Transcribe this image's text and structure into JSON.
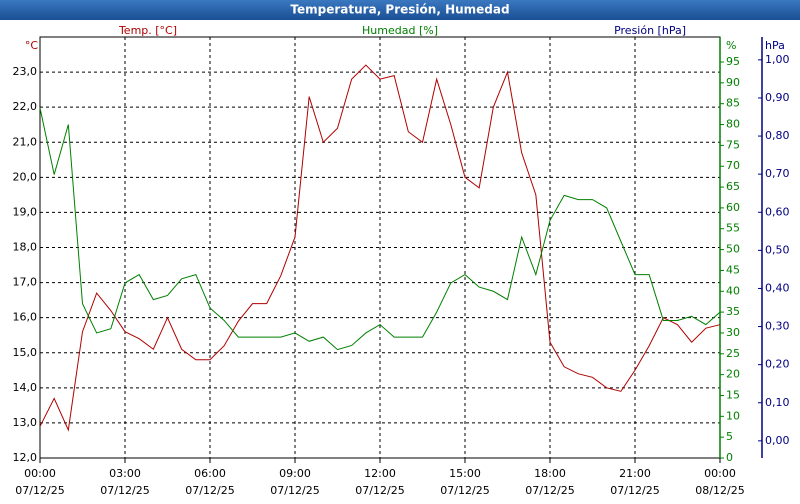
{
  "chart_data": {
    "type": "line",
    "title": "Temperatura, Presión, Humedad",
    "ylabel": "Temp. [°C]",
    "yunit": "°C",
    "y2label": "Humedad [%]",
    "y2unit": "%",
    "y3label": "Presión [hPa]",
    "y3unit": "hPa",
    "x": [
      0,
      0.5,
      1,
      1.5,
      2,
      2.5,
      3,
      3.5,
      4,
      4.5,
      5,
      5.5,
      6,
      6.5,
      7,
      7.5,
      8,
      8.5,
      9,
      9.5,
      10,
      10.5,
      11,
      11.5,
      12,
      12.5,
      13,
      13.5,
      14,
      14.5,
      15,
      15.5,
      16,
      16.5,
      17,
      17.5,
      18,
      18.5,
      19,
      19.5,
      20,
      20.5,
      21,
      21.5,
      22,
      22.5,
      23,
      23.5,
      24
    ],
    "xlim": [
      0,
      24
    ],
    "xticks": [
      {
        "value": 0,
        "label": "00:00",
        "date": "07/12/25"
      },
      {
        "value": 3,
        "label": "03:00",
        "date": "07/12/25"
      },
      {
        "value": 6,
        "label": "06:00",
        "date": "07/12/25"
      },
      {
        "value": 9,
        "label": "09:00",
        "date": "07/12/25"
      },
      {
        "value": 12,
        "label": "12:00",
        "date": "07/12/25"
      },
      {
        "value": 15,
        "label": "15:00",
        "date": "07/12/25"
      },
      {
        "value": 18,
        "label": "18:00",
        "date": "07/12/25"
      },
      {
        "value": 21,
        "label": "21:00",
        "date": "07/12/25"
      },
      {
        "value": 24,
        "label": "00:00",
        "date": "08/12/25"
      }
    ],
    "ylim": [
      12,
      24
    ],
    "yticks": [
      {
        "value": 12,
        "label": "12,0"
      },
      {
        "value": 13,
        "label": "13,0"
      },
      {
        "value": 14,
        "label": "14,0"
      },
      {
        "value": 15,
        "label": "15,0"
      },
      {
        "value": 16,
        "label": "16,0"
      },
      {
        "value": 17,
        "label": "17,0"
      },
      {
        "value": 18,
        "label": "18,0"
      },
      {
        "value": 19,
        "label": "19,0"
      },
      {
        "value": 20,
        "label": "20,0"
      },
      {
        "value": 21,
        "label": "21,0"
      },
      {
        "value": 22,
        "label": "22,0"
      },
      {
        "value": 23,
        "label": "23,0"
      }
    ],
    "y2lim": [
      0,
      101
    ],
    "y2ticks": [
      0,
      5,
      10,
      15,
      20,
      25,
      30,
      35,
      40,
      45,
      50,
      55,
      60,
      65,
      70,
      75,
      80,
      85,
      90,
      95
    ],
    "y3lim": [
      -0.045,
      1.06
    ],
    "y3ticks": [
      {
        "value": 0,
        "label": "0,00"
      },
      {
        "value": 0.1,
        "label": "0,10"
      },
      {
        "value": 0.2,
        "label": "0,20"
      },
      {
        "value": 0.3,
        "label": "0,30"
      },
      {
        "value": 0.4,
        "label": "0,40"
      },
      {
        "value": 0.5,
        "label": "0,50"
      },
      {
        "value": 0.6,
        "label": "0,60"
      },
      {
        "value": 0.7,
        "label": "0,70"
      },
      {
        "value": 0.8,
        "label": "0,80"
      },
      {
        "value": 0.9,
        "label": "0,90"
      },
      {
        "value": 1,
        "label": "1,00"
      }
    ],
    "grid": true,
    "series": [
      {
        "name": "Temp. [°C]",
        "color": "#b00000",
        "values": [
          12.9,
          13.7,
          12.8,
          15.6,
          16.7,
          16.2,
          15.6,
          15.4,
          15.1,
          16.0,
          15.1,
          14.8,
          14.8,
          15.2,
          15.9,
          16.4,
          16.4,
          17.2,
          18.3,
          22.3,
          21.0,
          21.4,
          22.8,
          23.2,
          22.8,
          22.9,
          21.3,
          21.0,
          22.8,
          21.5,
          20.0,
          19.7,
          22.0,
          23.0,
          20.7,
          19.5,
          15.3,
          14.6,
          14.4,
          14.3,
          14.0,
          13.9,
          14.5,
          15.2,
          16.0,
          15.8,
          15.3,
          15.7,
          15.8
        ]
      },
      {
        "name": "Humedad [%]",
        "color": "#008000",
        "axis": "y2",
        "values": [
          84,
          68,
          80,
          37,
          30,
          31,
          42,
          44,
          38,
          39,
          43,
          44,
          36,
          33,
          29,
          29,
          29,
          29,
          30,
          28,
          29,
          26,
          27,
          30,
          32,
          29,
          29,
          29,
          35,
          42,
          44,
          41,
          40,
          38,
          53,
          44,
          57,
          63,
          62,
          62,
          60,
          52,
          44,
          44,
          33,
          33,
          34,
          32,
          35
        ]
      }
    ]
  }
}
